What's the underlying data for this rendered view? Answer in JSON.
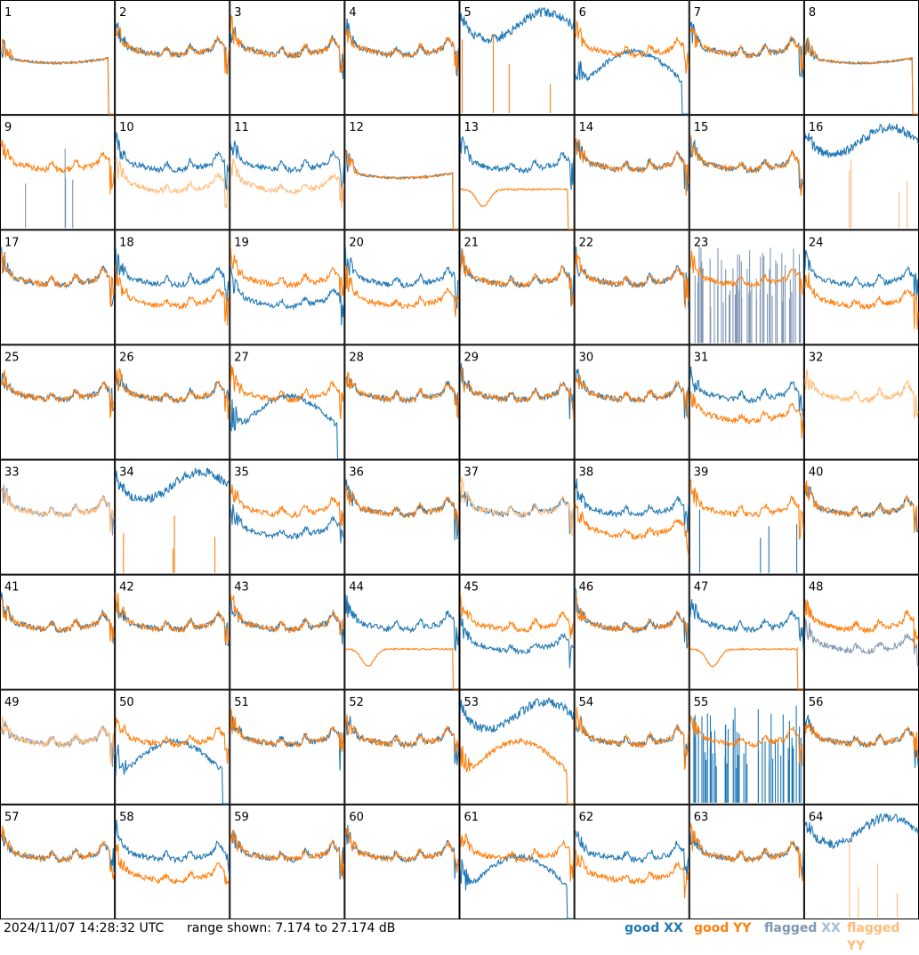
{
  "footer": {
    "timestamp": "2024/11/07 14:28:32 UTC",
    "range_text": "range shown: 7.174 to 27.174 dB"
  },
  "legend": [
    {
      "id": "good-xx",
      "label": "good",
      "pol": "XX",
      "label_color": "#1f77b4",
      "pol_color": "#1f77b4"
    },
    {
      "id": "good-yy",
      "label": "good",
      "pol": "YY",
      "label_color": "#ff7f0e",
      "pol_color": "#ff7f0e"
    },
    {
      "id": "flag-xx",
      "label": "flagged",
      "pol": "XX",
      "label_color": "#7f96b4",
      "pol_color": "#a9bdd6"
    },
    {
      "id": "flag-yy",
      "label": "flagged",
      "pol": "YY",
      "label_color": "#ffbb78",
      "pol_color": "#ffbb78"
    }
  ],
  "colors": {
    "good_xx": "#1f77b4",
    "good_yy": "#ff7f0e",
    "flagged_xx": "#7f96b4",
    "flagged_yy": "#ffbb78",
    "panel_border": "#000000"
  },
  "chart_data": {
    "type": "line",
    "layout": "8x8 grid of small-multiple spectra",
    "ylim": [
      7.174,
      27.174
    ],
    "y_units": "dB",
    "panels": [
      {
        "n": 1,
        "xx": "good",
        "yy": "good",
        "xx_shape": "dip",
        "yy_shape": "dip"
      },
      {
        "n": 2,
        "xx": "good",
        "yy": "good",
        "xx_shape": "normal",
        "yy_shape": "normal"
      },
      {
        "n": 3,
        "xx": "good",
        "yy": "good",
        "xx_shape": "normal",
        "yy_shape": "normal"
      },
      {
        "n": 4,
        "xx": "good",
        "yy": "good",
        "xx_shape": "normal",
        "yy_shape": "normal"
      },
      {
        "n": 5,
        "xx": "good",
        "yy": "good",
        "xx_shape": "high",
        "yy_shape": "spikes"
      },
      {
        "n": 6,
        "xx": "good",
        "yy": "good",
        "xx_shape": "wave",
        "yy_shape": "normal"
      },
      {
        "n": 7,
        "xx": "good",
        "yy": "good",
        "xx_shape": "normal",
        "yy_shape": "normal"
      },
      {
        "n": 8,
        "xx": "good",
        "yy": "good",
        "xx_shape": "dip",
        "yy_shape": "dip"
      },
      {
        "n": 9,
        "xx": "flagged",
        "yy": "good",
        "xx_shape": "spikes",
        "yy_shape": "normal"
      },
      {
        "n": 10,
        "xx": "good",
        "yy": "flagged",
        "xx_shape": "normal",
        "yy_shape": "low"
      },
      {
        "n": 11,
        "xx": "good",
        "yy": "flagged",
        "xx_shape": "normal",
        "yy_shape": "low"
      },
      {
        "n": 12,
        "xx": "good",
        "yy": "good",
        "xx_shape": "dip",
        "yy_shape": "dip"
      },
      {
        "n": 13,
        "xx": "good",
        "yy": "good",
        "xx_shape": "normal",
        "yy_shape": "deepdip"
      },
      {
        "n": 14,
        "xx": "good",
        "yy": "good",
        "xx_shape": "normal",
        "yy_shape": "normal"
      },
      {
        "n": 15,
        "xx": "good",
        "yy": "good",
        "xx_shape": "normal",
        "yy_shape": "normal"
      },
      {
        "n": 16,
        "xx": "good",
        "yy": "flagged",
        "xx_shape": "high",
        "yy_shape": "spikes"
      },
      {
        "n": 17,
        "xx": "good",
        "yy": "good",
        "xx_shape": "normal",
        "yy_shape": "normal"
      },
      {
        "n": 18,
        "xx": "good",
        "yy": "good",
        "xx_shape": "normal",
        "yy_shape": "low"
      },
      {
        "n": 19,
        "xx": "good",
        "yy": "good",
        "xx_shape": "low",
        "yy_shape": "normal"
      },
      {
        "n": 20,
        "xx": "good",
        "yy": "good",
        "xx_shape": "normal",
        "yy_shape": "low"
      },
      {
        "n": 21,
        "xx": "good",
        "yy": "good",
        "xx_shape": "normal",
        "yy_shape": "normal"
      },
      {
        "n": 22,
        "xx": "good",
        "yy": "good",
        "xx_shape": "normal",
        "yy_shape": "normal"
      },
      {
        "n": 23,
        "xx": "flagged",
        "yy": "good",
        "xx_shape": "noise",
        "yy_shape": "normal"
      },
      {
        "n": 24,
        "xx": "good",
        "yy": "good",
        "xx_shape": "normal",
        "yy_shape": "low"
      },
      {
        "n": 25,
        "xx": "good",
        "yy": "good",
        "xx_shape": "normal",
        "yy_shape": "normal"
      },
      {
        "n": 26,
        "xx": "good",
        "yy": "good",
        "xx_shape": "normal",
        "yy_shape": "normal"
      },
      {
        "n": 27,
        "xx": "good",
        "yy": "good",
        "xx_shape": "wave",
        "yy_shape": "normal"
      },
      {
        "n": 28,
        "xx": "good",
        "yy": "good",
        "xx_shape": "normal",
        "yy_shape": "normal"
      },
      {
        "n": 29,
        "xx": "good",
        "yy": "good",
        "xx_shape": "normal",
        "yy_shape": "normal"
      },
      {
        "n": 30,
        "xx": "good",
        "yy": "good",
        "xx_shape": "normal",
        "yy_shape": "normal"
      },
      {
        "n": 31,
        "xx": "good",
        "yy": "good",
        "xx_shape": "normal",
        "yy_shape": "low"
      },
      {
        "n": 32,
        "xx": "flagged",
        "yy": "flagged",
        "xx_shape": "none",
        "yy_shape": "normal"
      },
      {
        "n": 33,
        "xx": "flagged",
        "yy": "flagged",
        "xx_shape": "normal",
        "yy_shape": "normal"
      },
      {
        "n": 34,
        "xx": "good",
        "yy": "good",
        "xx_shape": "high",
        "yy_shape": "spikes"
      },
      {
        "n": 35,
        "xx": "good",
        "yy": "good",
        "xx_shape": "low",
        "yy_shape": "normal"
      },
      {
        "n": 36,
        "xx": "good",
        "yy": "good",
        "xx_shape": "normal",
        "yy_shape": "normal"
      },
      {
        "n": 37,
        "xx": "good",
        "yy": "flagged",
        "xx_shape": "normal",
        "yy_shape": "normal"
      },
      {
        "n": 38,
        "xx": "good",
        "yy": "good",
        "xx_shape": "normal",
        "yy_shape": "low"
      },
      {
        "n": 39,
        "xx": "good",
        "yy": "good",
        "xx_shape": "spikes",
        "yy_shape": "normal"
      },
      {
        "n": 40,
        "xx": "good",
        "yy": "good",
        "xx_shape": "normal",
        "yy_shape": "normal"
      },
      {
        "n": 41,
        "xx": "good",
        "yy": "good",
        "xx_shape": "normal",
        "yy_shape": "normal"
      },
      {
        "n": 42,
        "xx": "good",
        "yy": "good",
        "xx_shape": "normal",
        "yy_shape": "normal"
      },
      {
        "n": 43,
        "xx": "good",
        "yy": "good",
        "xx_shape": "normal",
        "yy_shape": "normal"
      },
      {
        "n": 44,
        "xx": "good",
        "yy": "good",
        "xx_shape": "normal",
        "yy_shape": "deepdip"
      },
      {
        "n": 45,
        "xx": "good",
        "yy": "good",
        "xx_shape": "low",
        "yy_shape": "normal"
      },
      {
        "n": 46,
        "xx": "good",
        "yy": "good",
        "xx_shape": "normal",
        "yy_shape": "normal"
      },
      {
        "n": 47,
        "xx": "good",
        "yy": "good",
        "xx_shape": "normal",
        "yy_shape": "deepdip"
      },
      {
        "n": 48,
        "xx": "flagged",
        "yy": "good",
        "xx_shape": "low",
        "yy_shape": "normal"
      },
      {
        "n": 49,
        "xx": "flagged",
        "yy": "flagged",
        "xx_shape": "normal",
        "yy_shape": "normal"
      },
      {
        "n": 50,
        "xx": "good",
        "yy": "good",
        "xx_shape": "wave",
        "yy_shape": "normal"
      },
      {
        "n": 51,
        "xx": "good",
        "yy": "good",
        "xx_shape": "normal",
        "yy_shape": "normal"
      },
      {
        "n": 52,
        "xx": "good",
        "yy": "good",
        "xx_shape": "normal",
        "yy_shape": "normal"
      },
      {
        "n": 53,
        "xx": "good",
        "yy": "good",
        "xx_shape": "high",
        "yy_shape": "wave"
      },
      {
        "n": 54,
        "xx": "good",
        "yy": "good",
        "xx_shape": "normal",
        "yy_shape": "normal"
      },
      {
        "n": 55,
        "xx": "good",
        "yy": "good",
        "xx_shape": "noise",
        "yy_shape": "normal"
      },
      {
        "n": 56,
        "xx": "good",
        "yy": "good",
        "xx_shape": "normal",
        "yy_shape": "normal"
      },
      {
        "n": 57,
        "xx": "good",
        "yy": "good",
        "xx_shape": "normal",
        "yy_shape": "normal"
      },
      {
        "n": 58,
        "xx": "good",
        "yy": "good",
        "xx_shape": "normal",
        "yy_shape": "low"
      },
      {
        "n": 59,
        "xx": "good",
        "yy": "good",
        "xx_shape": "normal",
        "yy_shape": "normal"
      },
      {
        "n": 60,
        "xx": "good",
        "yy": "good",
        "xx_shape": "normal",
        "yy_shape": "normal"
      },
      {
        "n": 61,
        "xx": "good",
        "yy": "good",
        "xx_shape": "wave",
        "yy_shape": "normal"
      },
      {
        "n": 62,
        "xx": "good",
        "yy": "good",
        "xx_shape": "normal",
        "yy_shape": "low"
      },
      {
        "n": 63,
        "xx": "good",
        "yy": "good",
        "xx_shape": "normal",
        "yy_shape": "normal"
      },
      {
        "n": 64,
        "xx": "good",
        "yy": "flagged",
        "xx_shape": "high",
        "yy_shape": "spikes"
      }
    ]
  }
}
